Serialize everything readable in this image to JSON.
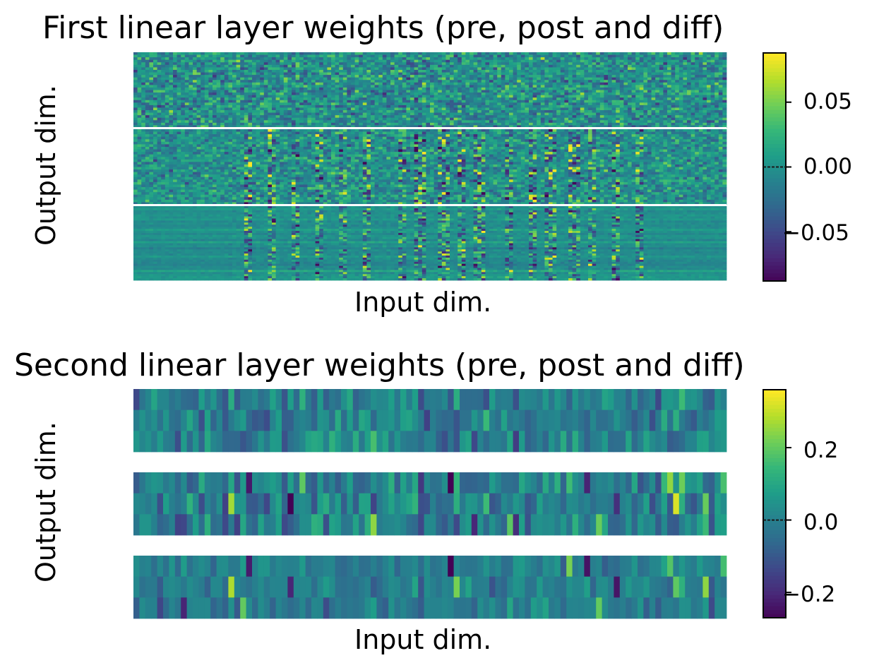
{
  "colors": {
    "viridis": [
      "#440154",
      "#482878",
      "#3e4989",
      "#31688e",
      "#26828e",
      "#1f9e89",
      "#35b779",
      "#6ece58",
      "#b5de2b",
      "#fde725"
    ],
    "separator": "#ffffff",
    "frame": "#000000"
  },
  "chart_data": [
    {
      "type": "heatmap",
      "title": "First linear layer weights (pre, post and diff)",
      "xlabel": "Input dim.",
      "ylabel": "Output dim.",
      "blocks": [
        "pre",
        "post",
        "diff"
      ],
      "blocks_separated": false,
      "colorbar": {
        "range": [
          -0.088,
          0.088
        ],
        "ticks": [
          {
            "value": 0.05,
            "label": "0.05"
          },
          {
            "value": 0.0,
            "label": "0.00"
          },
          {
            "value": -0.05,
            "label": "−0.05"
          }
        ]
      }
    },
    {
      "type": "heatmap",
      "title": "Second linear layer weights (pre, post and diff)",
      "xlabel": "Input dim.",
      "ylabel": "Output dim.",
      "blocks": [
        "pre",
        "post",
        "diff"
      ],
      "blocks_separated": true,
      "rows_per_block": 3,
      "colorbar": {
        "range": [
          -0.27,
          0.36
        ],
        "ticks": [
          {
            "value": 0.2,
            "label": "0.2"
          },
          {
            "value": 0.0,
            "label": "0.0"
          },
          {
            "value": -0.2,
            "label": "−0.2"
          }
        ]
      }
    }
  ]
}
